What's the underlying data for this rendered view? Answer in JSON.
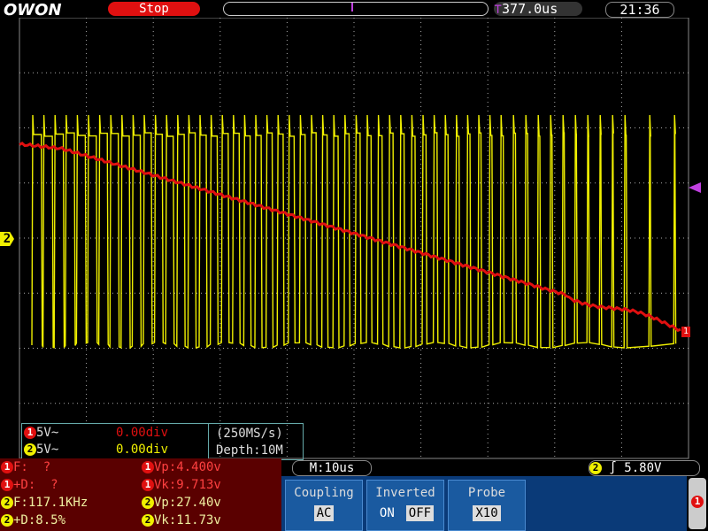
{
  "header": {
    "logo": "OWON",
    "status": "Stop",
    "time_offset": "377.0us",
    "clock": "21:36"
  },
  "channels": [
    {
      "number": "1",
      "scale": "5V~",
      "offset": "0.00div"
    },
    {
      "number": "2",
      "scale": "5V~",
      "offset": "0.00div"
    }
  ],
  "acquisition": {
    "rate": "(250MS/s)",
    "depth": "Depth:10M"
  },
  "measurements": {
    "left": [
      {
        "channel": "1",
        "text": "F:  ?"
      },
      {
        "channel": "1",
        "text": "+D:  ?"
      },
      {
        "channel": "2",
        "text": "F:117.1KHz"
      },
      {
        "channel": "2",
        "text": "+D:8.5%"
      }
    ],
    "right": [
      {
        "channel": "1",
        "text": "Vp:4.400v"
      },
      {
        "channel": "1",
        "text": "Vk:9.713v"
      },
      {
        "channel": "2",
        "text": "Vp:27.40v"
      },
      {
        "channel": "2",
        "text": "Vk:11.73v"
      }
    ]
  },
  "timebase": "M:10us",
  "trigger": {
    "channel": "2",
    "level": "5.80V"
  },
  "menu": [
    {
      "title": "Coupling",
      "options": [
        "AC"
      ]
    },
    {
      "title": "Inverted",
      "options": [
        "ON",
        "OFF"
      ]
    },
    {
      "title": "Probe",
      "options": [
        "X10"
      ]
    }
  ],
  "markers": {
    "ch2_ground": "2",
    "ch1_ground": "1",
    "menu_page": "1"
  }
}
